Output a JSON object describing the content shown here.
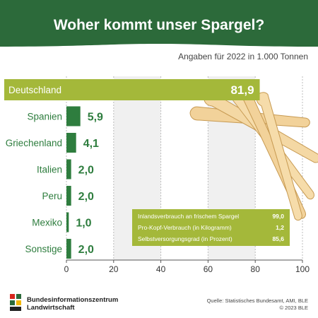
{
  "header": {
    "title": "Woher kommt unser Spargel?",
    "subtitle": "Angaben für 2022 in 1.000 Tonnen"
  },
  "colors": {
    "header_green": "#2c6a3a",
    "bar_green": "#2e7d3e",
    "highlight_green": "#a4b83a",
    "grid_bg": "#f0f0f0",
    "label_green": "#2e7d3e"
  },
  "chart_data": {
    "type": "bar",
    "orientation": "horizontal",
    "categories": [
      "Deutschland",
      "Spanien",
      "Griechenland",
      "Italien",
      "Peru",
      "Mexiko",
      "Sonstige"
    ],
    "values": [
      81.9,
      5.9,
      4.1,
      2.0,
      2.0,
      1.0,
      2.0
    ],
    "value_labels": [
      "81,9",
      "5,9",
      "4,1",
      "2,0",
      "2,0",
      "1,0",
      "2,0"
    ],
    "highlight": "Deutschland",
    "xlim": [
      0,
      100
    ],
    "xticks": [
      0,
      20,
      40,
      60,
      80,
      100
    ],
    "grid": true
  },
  "infobox": {
    "rows": [
      {
        "label": "Inlandsverbrauch an frischem Spargel",
        "value": "99,0"
      },
      {
        "label": "Pro-Kopf-Verbrauch (in Kilogramm)",
        "value": "1,2"
      },
      {
        "label": "Selbstversorgungsgrad (in Prozent)",
        "value": "85,6"
      }
    ]
  },
  "footer": {
    "org_line1": "Bundesinformationszentrum",
    "org_line2": "Landwirtschaft",
    "source_line1": "Quelle: Statistisches Bundesamt, AMI, BLE",
    "source_line2": "© 2023 BLE",
    "logo_icon": "ble-logo-icon"
  }
}
